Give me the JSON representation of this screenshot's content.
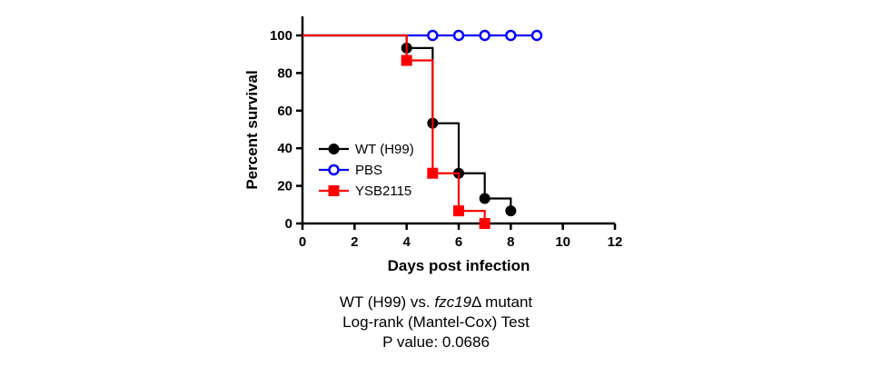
{
  "chart_data": {
    "type": "line",
    "step": true,
    "xlabel": "Days post infection",
    "ylabel": "Percent survival",
    "xlim": [
      0,
      12
    ],
    "ylim": [
      0,
      100
    ],
    "xticks": [
      0,
      2,
      4,
      6,
      8,
      10,
      12
    ],
    "yticks": [
      0,
      20,
      40,
      60,
      80,
      100
    ],
    "grid": false,
    "legend_position": "left-center",
    "series": [
      {
        "name": "WT (H99)",
        "color": "#000000",
        "marker": "filled-circle",
        "x": [
          0,
          4,
          5,
          6,
          7,
          8
        ],
        "y": [
          100,
          93.3,
          53.3,
          26.7,
          13.3,
          6.7
        ],
        "markers_x": [
          4,
          5,
          6,
          7,
          8
        ],
        "markers_y": [
          93.3,
          53.3,
          26.7,
          13.3,
          6.7
        ]
      },
      {
        "name": "PBS",
        "color": "#0000ff",
        "marker": "open-circle",
        "x": [
          0,
          9
        ],
        "y": [
          100,
          100
        ],
        "markers_x": [
          5,
          6,
          7,
          8,
          9
        ],
        "markers_y": [
          100,
          100,
          100,
          100,
          100
        ]
      },
      {
        "name": "YSB2115",
        "color": "#ff0000",
        "marker": "filled-square",
        "x": [
          0,
          4,
          5,
          6,
          7
        ],
        "y": [
          100,
          86.7,
          26.7,
          6.7,
          0
        ],
        "markers_x": [
          4,
          5,
          6,
          7
        ],
        "markers_y": [
          86.7,
          26.7,
          6.7,
          0
        ]
      }
    ]
  },
  "caption": {
    "line1_prefix": "WT (H99) vs. ",
    "line1_gene": "fzc19",
    "line1_suffix": "Δ mutant",
    "line2": "Log-rank (Mantel-Cox) Test",
    "line3": "P value: 0.0686"
  }
}
